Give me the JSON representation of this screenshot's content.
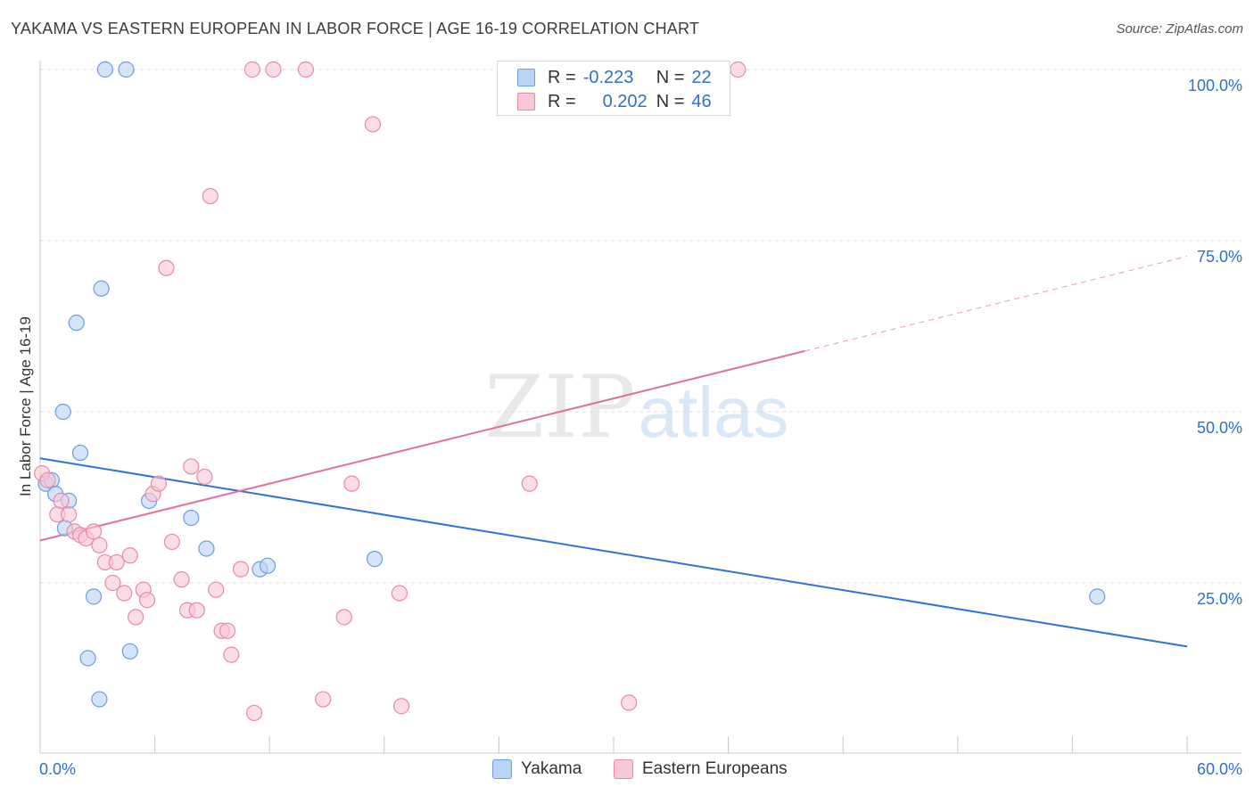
{
  "title": "YAKAMA VS EASTERN EUROPEAN IN LABOR FORCE | AGE 16-19 CORRELATION CHART",
  "source": "Source: ZipAtlas.com",
  "colors": {
    "blue_fill": "#b9d3f5",
    "blue_stroke": "#6b9de0",
    "blue_line": "#2f72d6",
    "pink_fill": "#f8c7d6",
    "pink_stroke": "#e88aa7",
    "pink_line": "#e2709a",
    "accent_text": "#2f6fd1",
    "grid": "#dcdcdc",
    "axis": "#c8c8c8"
  },
  "legend": {
    "rows": [
      {
        "r_label": "R =",
        "r_value": "-0.223",
        "n_label": "N =",
        "n_value": "22",
        "swatch_icon": "blue-square-icon"
      },
      {
        "r_label": "R =",
        "r_value": "0.202",
        "n_label": "N =",
        "n_value": "46",
        "swatch_icon": "pink-square-icon"
      }
    ]
  },
  "bottom_legend": {
    "items": [
      "Yakama",
      "Eastern Europeans"
    ]
  },
  "watermark": {
    "zip": "ZIP",
    "atlas": "atlas"
  },
  "chart_data": {
    "type": "scatter",
    "title": "YAKAMA VS EASTERN EUROPEAN IN LABOR FORCE | AGE 16-19 CORRELATION CHART",
    "xlabel": "",
    "ylabel": "In Labor Force | Age 16-19",
    "xlim": [
      0,
      60
    ],
    "ylim": [
      0,
      105
    ],
    "x_tick_labels": [
      "0.0%",
      "60.0%"
    ],
    "y_ticks": [
      25,
      50,
      75,
      100
    ],
    "y_tick_labels": [
      "25.0%",
      "50.0%",
      "75.0%",
      "100.0%"
    ],
    "grid": true,
    "legend_position": "top-center",
    "series": [
      {
        "name": "Yakama",
        "r": -0.223,
        "n": 22,
        "points": [
          [
            0.3,
            39.5
          ],
          [
            0.6,
            40
          ],
          [
            0.8,
            38
          ],
          [
            1.2,
            50
          ],
          [
            1.3,
            33
          ],
          [
            1.5,
            37
          ],
          [
            1.9,
            63
          ],
          [
            2.1,
            44
          ],
          [
            2.5,
            14
          ],
          [
            2.8,
            23
          ],
          [
            3.1,
            8
          ],
          [
            3.2,
            68
          ],
          [
            3.4,
            100
          ],
          [
            4.5,
            100
          ],
          [
            4.7,
            15
          ],
          [
            5.7,
            37
          ],
          [
            7.9,
            34.5
          ],
          [
            8.7,
            30
          ],
          [
            11.5,
            27
          ],
          [
            11.9,
            27.5
          ],
          [
            17.5,
            28.5
          ],
          [
            55.3,
            23
          ]
        ],
        "trend": {
          "x0": 0,
          "y0": 43.2,
          "x1": 60,
          "y1": 15.7,
          "dashed_from": null
        }
      },
      {
        "name": "Eastern Europeans",
        "r": 0.202,
        "n": 46,
        "points": [
          [
            0.1,
            41
          ],
          [
            0.4,
            40
          ],
          [
            0.9,
            35
          ],
          [
            1.1,
            37
          ],
          [
            1.5,
            35
          ],
          [
            1.8,
            32.5
          ],
          [
            2.1,
            32
          ],
          [
            2.4,
            31.5
          ],
          [
            2.8,
            32.5
          ],
          [
            3.1,
            30.5
          ],
          [
            3.4,
            28
          ],
          [
            3.8,
            25
          ],
          [
            4.0,
            28
          ],
          [
            4.4,
            23.5
          ],
          [
            4.7,
            29
          ],
          [
            5.0,
            20
          ],
          [
            5.4,
            24
          ],
          [
            5.6,
            22.5
          ],
          [
            5.9,
            38
          ],
          [
            6.2,
            39.5
          ],
          [
            6.6,
            71
          ],
          [
            6.9,
            31
          ],
          [
            7.4,
            25.5
          ],
          [
            7.7,
            21
          ],
          [
            7.9,
            42
          ],
          [
            8.2,
            21
          ],
          [
            8.6,
            40.5
          ],
          [
            8.9,
            81.5
          ],
          [
            9.2,
            24
          ],
          [
            9.5,
            18
          ],
          [
            9.8,
            18
          ],
          [
            10.0,
            14.5
          ],
          [
            10.5,
            27
          ],
          [
            11.2,
            6
          ],
          [
            11.1,
            100
          ],
          [
            12.2,
            100
          ],
          [
            13.9,
            100
          ],
          [
            14.8,
            8
          ],
          [
            15.9,
            20
          ],
          [
            16.3,
            39.5
          ],
          [
            17.4,
            92
          ],
          [
            18.8,
            23.5
          ],
          [
            18.9,
            7
          ],
          [
            25.6,
            39.5
          ],
          [
            30.8,
            7.5
          ],
          [
            36.5,
            100
          ]
        ],
        "trend": {
          "x0": 0,
          "y0": 31.2,
          "x1": 60,
          "y1": 72.7,
          "dashed_from": 40
        }
      }
    ]
  }
}
